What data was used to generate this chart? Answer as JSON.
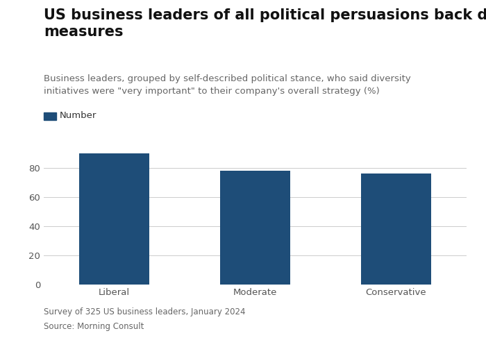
{
  "title": "US business leaders of all political persuasions back diversity\nmeasures",
  "subtitle": "Business leaders, grouped by self-described political stance, who said diversity\ninitiatives were \"very important\" to their company's overall strategy (%)",
  "legend_label": "Number",
  "categories": [
    "Liberal",
    "Moderate",
    "Conservative"
  ],
  "values": [
    90,
    78,
    76
  ],
  "bar_color": "#1e4d78",
  "ylim": [
    0,
    100
  ],
  "yticks": [
    0,
    20,
    40,
    60,
    80
  ],
  "footnote1": "Survey of 325 US business leaders, January 2024",
  "footnote2": "Source: Morning Consult",
  "background_color": "#ffffff",
  "grid_color": "#cccccc",
  "title_fontsize": 15,
  "subtitle_fontsize": 9.5,
  "tick_fontsize": 9.5,
  "footnote_fontsize": 8.5,
  "legend_fontsize": 9.5,
  "bar_width": 0.5
}
